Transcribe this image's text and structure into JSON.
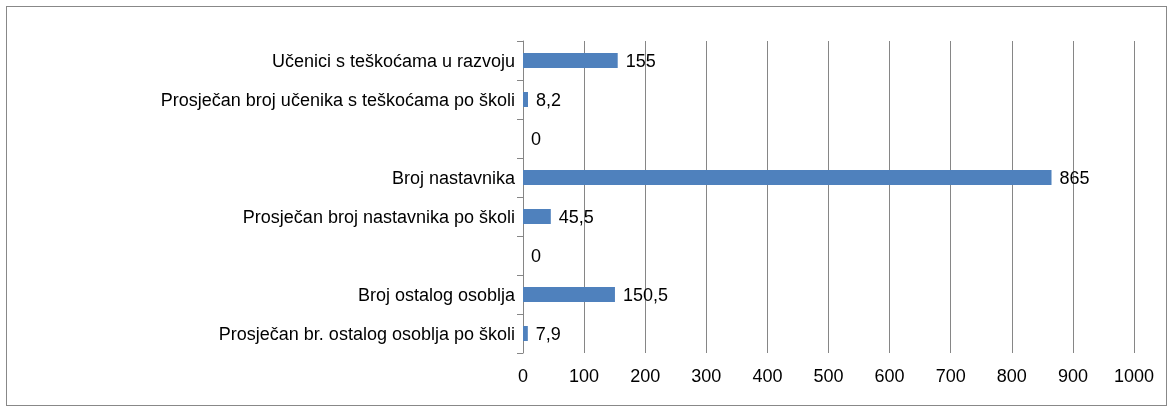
{
  "chart_data": {
    "type": "bar",
    "orientation": "horizontal",
    "categories": [
      "Učenici s teškoćama u razvoju",
      "Prosječan broj učenika s teškoćama po školi",
      null,
      "Broj nastavnika",
      "Prosječan broj nastavnika po školi",
      null,
      "Broj ostalog osoblja",
      "Prosječan br. ostalog osoblja po školi"
    ],
    "values": [
      155,
      8.2,
      0,
      865,
      45.5,
      0,
      150.5,
      7.9
    ],
    "value_labels": [
      "155",
      "8,2",
      "0",
      "865",
      "45,5",
      "0",
      "150,5",
      "7,9"
    ],
    "color": "#4f81bd",
    "xlim": [
      0,
      1000
    ],
    "xticks": [
      0,
      100,
      200,
      300,
      400,
      500,
      600,
      700,
      800,
      900,
      1000
    ],
    "grid": "x"
  }
}
